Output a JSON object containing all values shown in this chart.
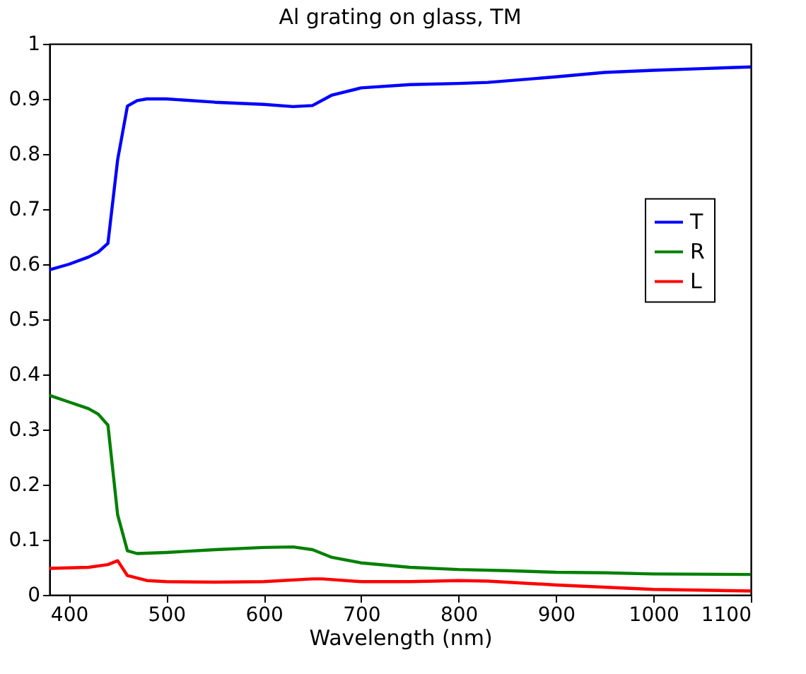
{
  "chart_data": {
    "type": "line",
    "title": "Al grating on glass, TM",
    "xlabel": "Wavelength (nm)",
    "xlim": [
      380,
      1100
    ],
    "xticks": [
      400,
      500,
      600,
      700,
      800,
      900,
      1000,
      1100
    ],
    "ylim": [
      0,
      1
    ],
    "yticks": [
      0,
      0.1,
      0.2,
      0.3,
      0.4,
      0.5,
      0.6,
      0.7,
      0.8,
      0.9,
      1
    ],
    "grid": false,
    "legend": "right",
    "line_style": "solid",
    "marker": "none",
    "series": [
      {
        "name": "T",
        "color": "#0000ff",
        "x": [
          380,
          400,
          420,
          430,
          440,
          450,
          460,
          470,
          480,
          500,
          550,
          600,
          630,
          650,
          670,
          700,
          750,
          800,
          830,
          900,
          950,
          1000,
          1050,
          1100
        ],
        "values": [
          0.59,
          0.6,
          0.613,
          0.622,
          0.638,
          0.79,
          0.887,
          0.897,
          0.9,
          0.9,
          0.894,
          0.89,
          0.886,
          0.888,
          0.907,
          0.92,
          0.926,
          0.928,
          0.93,
          0.94,
          0.948,
          0.952,
          0.955,
          0.958
        ]
      },
      {
        "name": "R",
        "color": "#008000",
        "x": [
          380,
          400,
          420,
          430,
          440,
          450,
          460,
          470,
          500,
          550,
          600,
          630,
          650,
          670,
          700,
          750,
          800,
          850,
          900,
          950,
          1000,
          1100
        ],
        "values": [
          0.362,
          0.35,
          0.338,
          0.328,
          0.308,
          0.145,
          0.08,
          0.075,
          0.077,
          0.082,
          0.086,
          0.087,
          0.082,
          0.068,
          0.058,
          0.05,
          0.046,
          0.044,
          0.041,
          0.04,
          0.038,
          0.037
        ]
      },
      {
        "name": "L",
        "color": "#ff0000",
        "x": [
          380,
          420,
          440,
          450,
          460,
          480,
          500,
          550,
          600,
          650,
          660,
          700,
          750,
          800,
          830,
          900,
          1000,
          1100
        ],
        "values": [
          0.048,
          0.05,
          0.055,
          0.062,
          0.035,
          0.026,
          0.024,
          0.023,
          0.024,
          0.029,
          0.029,
          0.024,
          0.024,
          0.026,
          0.025,
          0.018,
          0.01,
          0.007
        ]
      }
    ]
  }
}
